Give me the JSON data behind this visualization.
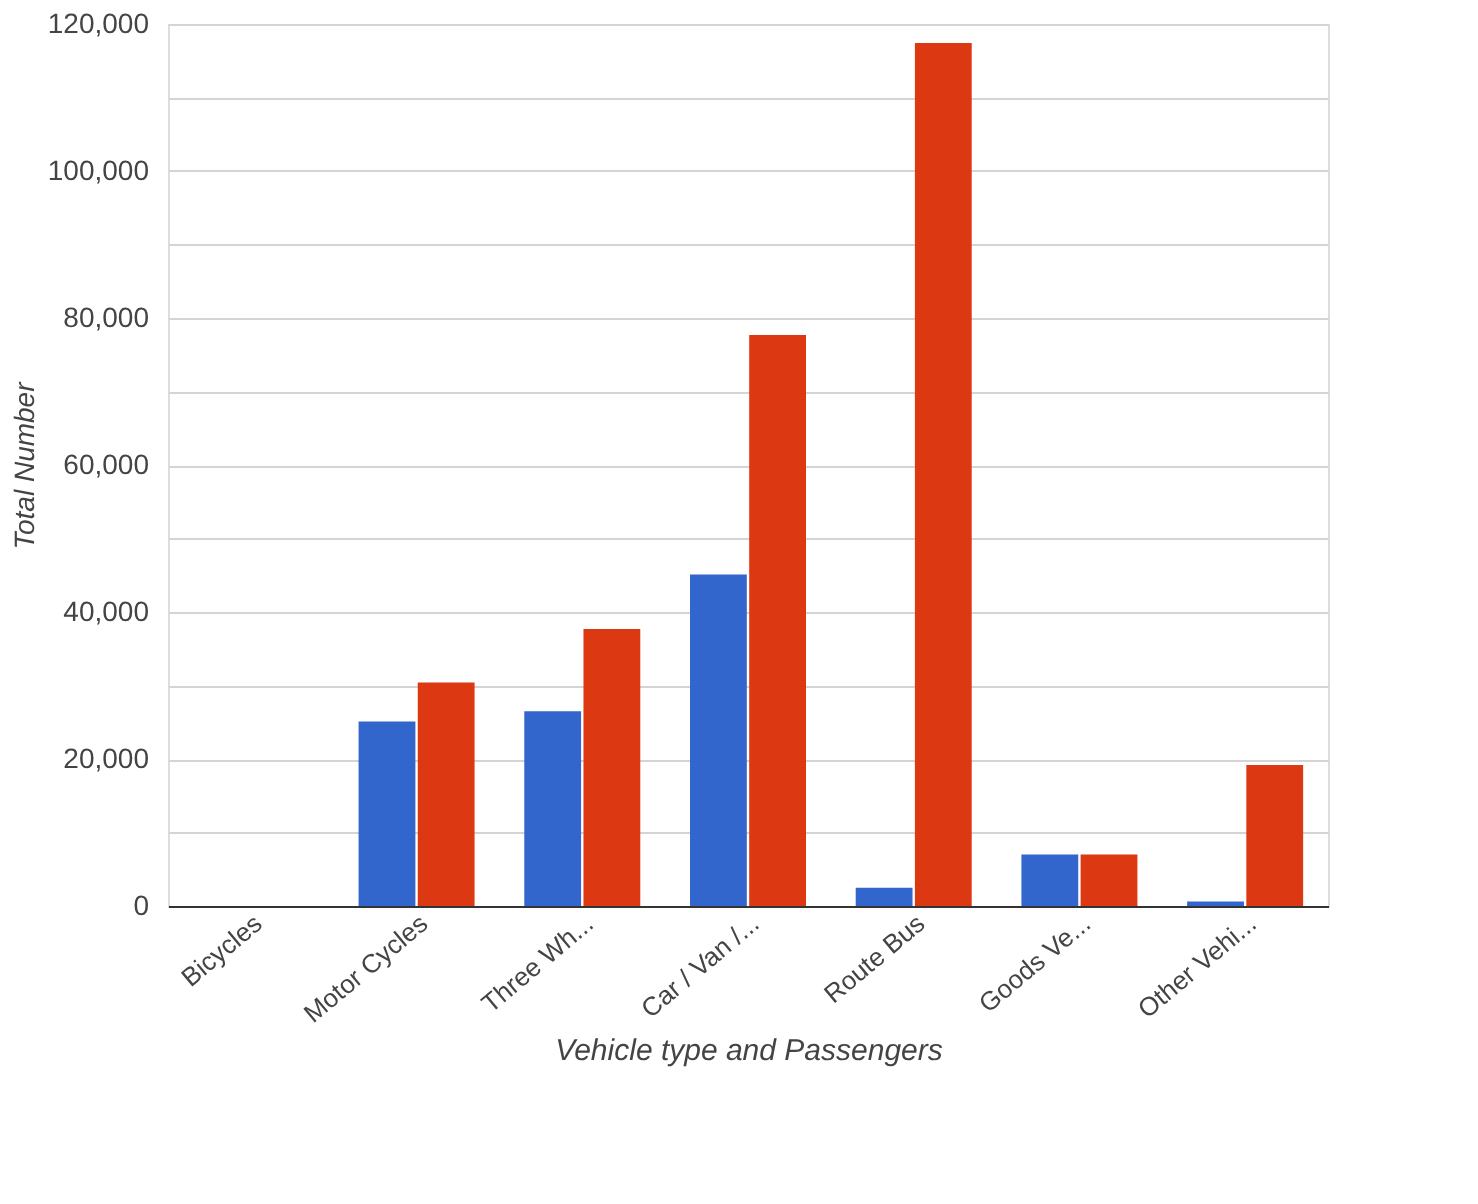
{
  "chart_data": {
    "type": "bar",
    "xlabel": "Vehicle type and Passengers",
    "ylabel": "Total Number",
    "categories": [
      "Bicycles",
      "Motor Cycles",
      "Three Wh...",
      "Car / Van /...",
      "Route Bus",
      "Goods Ve...",
      "Other Vehi..."
    ],
    "series": [
      {
        "color": "#3366cc",
        "values": [
          0,
          25100,
          26500,
          45100,
          2500,
          7000,
          600
        ]
      },
      {
        "color": "#dc3912",
        "values": [
          0,
          30400,
          37700,
          77700,
          117400,
          7000,
          19200
        ]
      }
    ],
    "ylim": [
      0,
      120000
    ],
    "yticks": [
      0,
      {
        "value": 10000,
        "label": null
      },
      {
        "value": 20000,
        "label": "20,000"
      },
      {
        "value": 30000,
        "label": null
      },
      {
        "value": 40000,
        "label": "40,000"
      },
      {
        "value": 50000,
        "label": null
      },
      {
        "value": 60000,
        "label": "60,000"
      },
      {
        "value": 70000,
        "label": null
      },
      {
        "value": 80000,
        "label": "80,000"
      },
      {
        "value": 90000,
        "label": null
      },
      {
        "value": 100000,
        "label": "100,000"
      },
      {
        "value": 110000,
        "label": null
      },
      {
        "value": 120000,
        "label": "120,000"
      }
    ],
    "grid": "y",
    "legend": false
  }
}
